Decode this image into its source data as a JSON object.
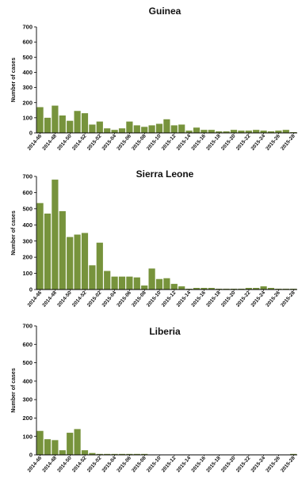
{
  "chart_data": [
    {
      "type": "bar",
      "title": "Guinea",
      "xlabel": "",
      "ylabel": "Number of cases",
      "ylim": [
        0,
        700
      ],
      "yticks": [
        0,
        100,
        200,
        300,
        400,
        500,
        600,
        700
      ],
      "grid": false,
      "color": "#77933c",
      "categories": [
        "2014-46",
        "2014-47",
        "2014-48",
        "2014-49",
        "2014-50",
        "2014-51",
        "2014-52",
        "2015-01",
        "2015-02",
        "2015-03",
        "2015-04",
        "2015-05",
        "2015-06",
        "2015-07",
        "2015-08",
        "2015-09",
        "2015-10",
        "2015-11",
        "2015-12",
        "2015-13",
        "2015-14",
        "2015-15",
        "2015-16",
        "2015-17",
        "2015-18",
        "2015-19",
        "2015-20",
        "2015-21",
        "2015-22",
        "2015-23",
        "2015-24",
        "2015-25",
        "2015-26",
        "2015-27",
        "2015-28"
      ],
      "tick_labels": [
        "2014-46",
        "2014-48",
        "2014-50",
        "2014-52",
        "2015-02",
        "2015-04",
        "2015-06",
        "2015-08",
        "2015-10",
        "2015-12",
        "2015-14",
        "2015-16",
        "2015-18",
        "2015-20",
        "2015-22",
        "2015-24",
        "2015-26",
        "2015-28"
      ],
      "values": [
        170,
        100,
        180,
        115,
        80,
        145,
        130,
        55,
        75,
        30,
        20,
        30,
        75,
        50,
        40,
        50,
        60,
        90,
        50,
        55,
        15,
        35,
        20,
        20,
        10,
        10,
        20,
        15,
        15,
        20,
        15,
        10,
        15,
        20,
        5
      ]
    },
    {
      "type": "bar",
      "title": "Sierra Leone",
      "xlabel": "",
      "ylabel": "Number of cases",
      "ylim": [
        0,
        700
      ],
      "yticks": [
        0,
        100,
        200,
        300,
        400,
        500,
        600,
        700
      ],
      "grid": false,
      "color": "#77933c",
      "categories": [
        "2014-46",
        "2014-47",
        "2014-48",
        "2014-49",
        "2014-50",
        "2014-51",
        "2014-52",
        "2015-01",
        "2015-02",
        "2015-03",
        "2015-04",
        "2015-05",
        "2015-06",
        "2015-07",
        "2015-08",
        "2015-09",
        "2015-10",
        "2015-11",
        "2015-12",
        "2015-13",
        "2015-14",
        "2015-15",
        "2015-16",
        "2015-17",
        "2015-18",
        "2015-19",
        "2015-20",
        "2015-21",
        "2015-22",
        "2015-23",
        "2015-24",
        "2015-25",
        "2015-26",
        "2015-27",
        "2015-28"
      ],
      "tick_labels": [
        "2014-46",
        "2014-48",
        "2014-50",
        "2014-52",
        "2015-02",
        "2015-04",
        "2015-06",
        "2015-08",
        "2015-10",
        "2015-12",
        "2015-14",
        "2015-16",
        "2015-18",
        "2015-20",
        "2015-22",
        "2015-24",
        "2015-26",
        "2015-28"
      ],
      "values": [
        535,
        470,
        680,
        485,
        325,
        340,
        350,
        150,
        290,
        115,
        80,
        80,
        80,
        75,
        25,
        130,
        65,
        70,
        35,
        20,
        5,
        10,
        10,
        10,
        5,
        5,
        5,
        5,
        10,
        10,
        20,
        10,
        5,
        5,
        5
      ]
    },
    {
      "type": "bar",
      "title": "Liberia",
      "xlabel": "",
      "ylabel": "Number of cases",
      "ylim": [
        0,
        700
      ],
      "yticks": [
        0,
        100,
        200,
        300,
        400,
        500,
        600,
        700
      ],
      "grid": false,
      "color": "#77933c",
      "categories": [
        "2014-46",
        "2014-47",
        "2014-48",
        "2014-49",
        "2014-50",
        "2014-51",
        "2014-52",
        "2015-01",
        "2015-02",
        "2015-03",
        "2015-04",
        "2015-05",
        "2015-06",
        "2015-07",
        "2015-08",
        "2015-09",
        "2015-10",
        "2015-11",
        "2015-12",
        "2015-13",
        "2015-14",
        "2015-15",
        "2015-16",
        "2015-17",
        "2015-18",
        "2015-19",
        "2015-20",
        "2015-21",
        "2015-22",
        "2015-23",
        "2015-24",
        "2015-25",
        "2015-26",
        "2015-27",
        "2015-28"
      ],
      "tick_labels": [
        "2014-46",
        "2014-48",
        "2014-50",
        "2014-52",
        "2015-02",
        "2015-04",
        "2015-06",
        "2015-08",
        "2015-10",
        "2015-12",
        "2015-14",
        "2015-16",
        "2015-18",
        "2015-20",
        "2015-22",
        "2015-24",
        "2015-26",
        "2015-28"
      ],
      "values": [
        130,
        85,
        80,
        25,
        120,
        140,
        25,
        10,
        5,
        5,
        5,
        5,
        5,
        5,
        5,
        0,
        0,
        0,
        0,
        0,
        0,
        0,
        0,
        0,
        0,
        0,
        0,
        0,
        0,
        0,
        0,
        0,
        0,
        0,
        5
      ]
    }
  ]
}
